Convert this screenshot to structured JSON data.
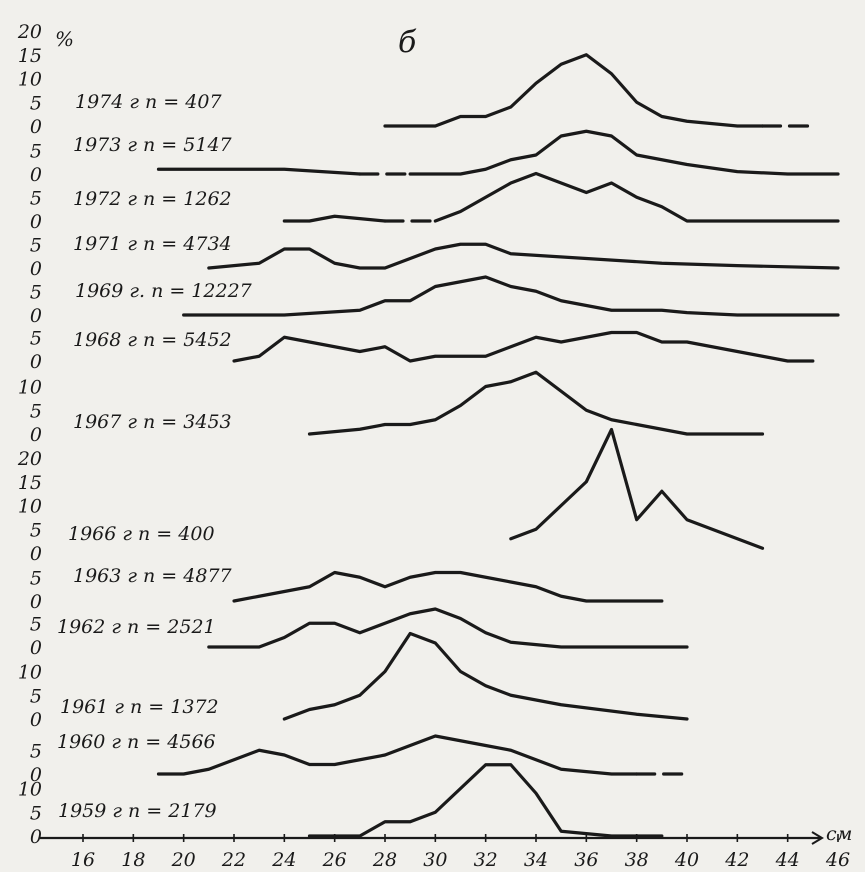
{
  "chart_data": {
    "type": "line",
    "panel_label": "б",
    "y_unit": "%",
    "x_unit": "см",
    "x_ticks": [
      "16",
      "18",
      "20",
      "22",
      "24",
      "26",
      "28",
      "30",
      "32",
      "34",
      "36",
      "38",
      "40",
      "42",
      "44",
      "46"
    ],
    "series": [
      {
        "name": "1974 г n = 407",
        "baseline_labels": [
          "20",
          "15",
          "10",
          "5",
          "0"
        ],
        "x": [
          28,
          30,
          31,
          32,
          33,
          34,
          35,
          36,
          37,
          38,
          39,
          40,
          41,
          42,
          43,
          45
        ],
        "y": [
          0,
          0,
          2,
          2,
          4,
          9,
          13,
          15,
          11,
          5,
          2,
          1,
          0.5,
          0,
          0,
          0
        ],
        "dashed_from": 43
      },
      {
        "name": "1973 г n = 5147",
        "baseline_labels": [
          "5",
          "0"
        ],
        "x": [
          19,
          24,
          27,
          28,
          29,
          30,
          31,
          32,
          33,
          34,
          35,
          36,
          37,
          38,
          40,
          42,
          44,
          46
        ],
        "y": [
          1,
          1,
          0,
          0,
          0,
          0,
          0,
          1,
          3,
          4,
          8,
          9,
          8,
          4,
          2,
          0.5,
          0,
          0
        ],
        "dashed_from_to": [
          27,
          29
        ]
      },
      {
        "name": "1972 г n = 1262",
        "baseline_labels": [
          "5",
          "0"
        ],
        "x": [
          24,
          25,
          26,
          27,
          28,
          29,
          30,
          31,
          32,
          33,
          34,
          35,
          36,
          37,
          38,
          39,
          40,
          41,
          46
        ],
        "y": [
          0,
          0,
          1,
          0.5,
          0,
          0,
          0,
          2,
          5,
          8,
          10,
          8,
          6,
          8,
          5,
          3,
          0,
          0,
          0
        ],
        "dashed_from_to": [
          28,
          30
        ]
      },
      {
        "name": "1971 г n = 4734",
        "baseline_labels": [
          "5",
          "0"
        ],
        "x": [
          21,
          23,
          24,
          25,
          26,
          27,
          28,
          29,
          30,
          31,
          32,
          33,
          36,
          39,
          42,
          46
        ],
        "y": [
          0,
          1,
          4,
          4,
          1,
          0,
          0,
          2,
          4,
          5,
          5,
          3,
          2,
          1,
          0.5,
          0
        ]
      },
      {
        "name": "1969 г. n = 12227",
        "baseline_labels": [
          "5",
          "0"
        ],
        "x": [
          20,
          24,
          27,
          28,
          29,
          30,
          31,
          32,
          33,
          34,
          35,
          36,
          37,
          38,
          39,
          40,
          42,
          46
        ],
        "y": [
          0,
          0,
          1,
          3,
          3,
          6,
          7,
          8,
          6,
          5,
          3,
          2,
          1,
          1,
          1,
          0.5,
          0,
          0
        ]
      },
      {
        "name": "1968 г n = 5452",
        "baseline_labels": [
          "5",
          "0"
        ],
        "x": [
          22,
          23,
          24,
          25,
          26,
          27,
          28,
          29,
          30,
          31,
          32,
          33,
          34,
          35,
          36,
          37,
          38,
          39,
          40,
          41,
          42,
          43,
          44,
          45
        ],
        "y": [
          0,
          1,
          5,
          4,
          3,
          2,
          3,
          0,
          1,
          1,
          1,
          3,
          5,
          4,
          5,
          6,
          6,
          4,
          4,
          3,
          2,
          1,
          0,
          0
        ]
      },
      {
        "name": "1967 г n = 3453",
        "baseline_labels": [
          "10",
          "5",
          "0"
        ],
        "x": [
          25,
          27,
          28,
          29,
          30,
          31,
          32,
          33,
          34,
          35,
          36,
          37,
          38,
          39,
          40,
          41,
          43
        ],
        "y": [
          0,
          1,
          2,
          2,
          3,
          6,
          10,
          11,
          13,
          9,
          5,
          3,
          2,
          1,
          0,
          0,
          0
        ]
      },
      {
        "name": "1966 г n = 400",
        "baseline_labels": [
          "20",
          "15",
          "10",
          "5",
          "0"
        ],
        "x": [
          33,
          34,
          35,
          36,
          37,
          38,
          39,
          40,
          41,
          42,
          43
        ],
        "y": [
          3,
          5,
          10,
          15,
          26,
          7,
          13,
          7,
          5,
          3,
          1
        ]
      },
      {
        "name": "1963 г n = 4877",
        "baseline_labels": [
          "5",
          "0"
        ],
        "x": [
          22,
          23,
          24,
          25,
          26,
          27,
          28,
          29,
          30,
          31,
          32,
          33,
          34,
          35,
          36,
          37,
          39
        ],
        "y": [
          0,
          1,
          2,
          3,
          6,
          5,
          3,
          5,
          6,
          6,
          5,
          4,
          3,
          1,
          0,
          0,
          0
        ]
      },
      {
        "name": "1962 г n = 2521",
        "baseline_labels": [
          "5",
          "0"
        ],
        "x": [
          21,
          22,
          23,
          24,
          25,
          26,
          27,
          28,
          29,
          30,
          31,
          32,
          33,
          34,
          35,
          36,
          37,
          38,
          40
        ],
        "y": [
          0,
          0,
          0,
          2,
          5,
          5,
          3,
          5,
          7,
          8,
          6,
          3,
          1,
          0.5,
          0,
          0,
          0,
          0,
          0
        ]
      },
      {
        "name": "1961 г n = 1372",
        "baseline_labels": [
          "10",
          "5",
          "0"
        ],
        "x": [
          24,
          25,
          26,
          27,
          28,
          29,
          30,
          31,
          32,
          33,
          35,
          38,
          40
        ],
        "y": [
          0,
          2,
          3,
          5,
          10,
          18,
          16,
          10,
          7,
          5,
          3,
          1,
          0
        ]
      },
      {
        "name": "1960 г n = 4566",
        "baseline_labels": [
          "5",
          "0"
        ],
        "x": [
          19,
          20,
          21,
          22,
          23,
          24,
          25,
          26,
          27,
          28,
          29,
          30,
          31,
          32,
          33,
          34,
          35,
          36,
          37,
          38,
          39,
          40
        ],
        "y": [
          0,
          0,
          1,
          3,
          5,
          4,
          2,
          2,
          3,
          4,
          6,
          8,
          7,
          6,
          5,
          3,
          1,
          0.5,
          0,
          0,
          0,
          0
        ],
        "dashed_from": 38
      },
      {
        "name": "1959 г n = 2179",
        "baseline_labels": [
          "10",
          "5",
          "0"
        ],
        "x": [
          25,
          26,
          27,
          28,
          29,
          30,
          31,
          32,
          33,
          34,
          35,
          36,
          37,
          38,
          39
        ],
        "y": [
          0,
          0,
          0,
          3,
          3,
          5,
          10,
          15,
          15,
          9,
          1,
          0.5,
          0,
          0,
          0
        ]
      }
    ]
  }
}
